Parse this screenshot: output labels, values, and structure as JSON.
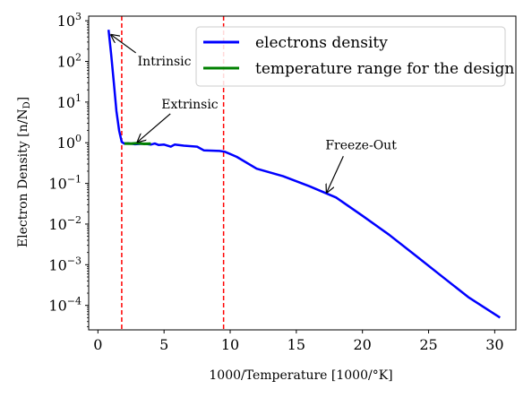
{
  "chart_data": {
    "type": "line",
    "xlabel": "1000/Temperature [1000/°K]",
    "ylabel": "Electron Density [n/N",
    "ylabel_sub": "D",
    "ylabel_close": "]",
    "xlim": [
      -0.7,
      31.6
    ],
    "ylim": [
      2.5e-05,
      1300
    ],
    "y_scale": "log",
    "x_ticks": [
      0,
      5,
      10,
      15,
      20,
      25,
      30
    ],
    "x_tick_labels": [
      "0",
      "5",
      "10",
      "15",
      "20",
      "25",
      "30"
    ],
    "y_ticks": [
      1000,
      100,
      10,
      1,
      0.1,
      0.01,
      0.001,
      0.0001
    ],
    "y_tick_labels": [
      {
        "base": "10",
        "exp": "3"
      },
      {
        "base": "10",
        "exp": "2"
      },
      {
        "base": "10",
        "exp": "1"
      },
      {
        "base": "10",
        "exp": "0"
      },
      {
        "base": "10",
        "exp": "−1"
      },
      {
        "base": "10",
        "exp": "−2"
      },
      {
        "base": "10",
        "exp": "−3"
      },
      {
        "base": "10",
        "exp": "−4"
      }
    ],
    "series": [
      {
        "name": "electrons density",
        "color": "#0000ff",
        "x": [
          0.8,
          1.0,
          1.2,
          1.4,
          1.6,
          1.8,
          2.0,
          2.3,
          2.8,
          3.5,
          4.0,
          4.3,
          4.6,
          5.0,
          5.5,
          5.8,
          6.5,
          7.5,
          8.0,
          9.2,
          9.6,
          10.5,
          12.0,
          14.0,
          16.0,
          18.0,
          20.0,
          22.0,
          24.0,
          26.0,
          28.0,
          30.4
        ],
        "y": [
          600,
          150,
          30,
          6,
          2,
          1.05,
          0.95,
          0.97,
          0.92,
          0.95,
          0.9,
          0.96,
          0.88,
          0.9,
          0.8,
          0.9,
          0.85,
          0.8,
          0.65,
          0.63,
          0.6,
          0.45,
          0.23,
          0.15,
          0.085,
          0.045,
          0.016,
          0.0055,
          0.0017,
          0.00052,
          0.00016,
          5e-05
        ]
      },
      {
        "name": "temperature range for the design",
        "color": "#008000",
        "x": [
          2.0,
          2.5,
          3.0,
          3.5,
          4.0
        ],
        "y": [
          0.96,
          0.95,
          0.97,
          0.94,
          0.95
        ]
      }
    ],
    "vlines": [
      {
        "x": 1.8,
        "color": "#ff0000",
        "style": "dashed"
      },
      {
        "x": 9.5,
        "color": "#ff0000",
        "style": "dashed"
      }
    ],
    "annotations": [
      {
        "text": "Intrinsic",
        "point": [
          1.0,
          450
        ],
        "text_at": [
          3.0,
          80
        ]
      },
      {
        "text": "Extrinsic",
        "point": [
          3.0,
          1.05
        ],
        "text_at": [
          4.8,
          7
        ]
      },
      {
        "text": "Freeze-Out",
        "point": [
          17.3,
          0.06
        ],
        "text_at": [
          17.2,
          0.7
        ]
      }
    ],
    "legend_position": "top-right",
    "grid": false
  }
}
